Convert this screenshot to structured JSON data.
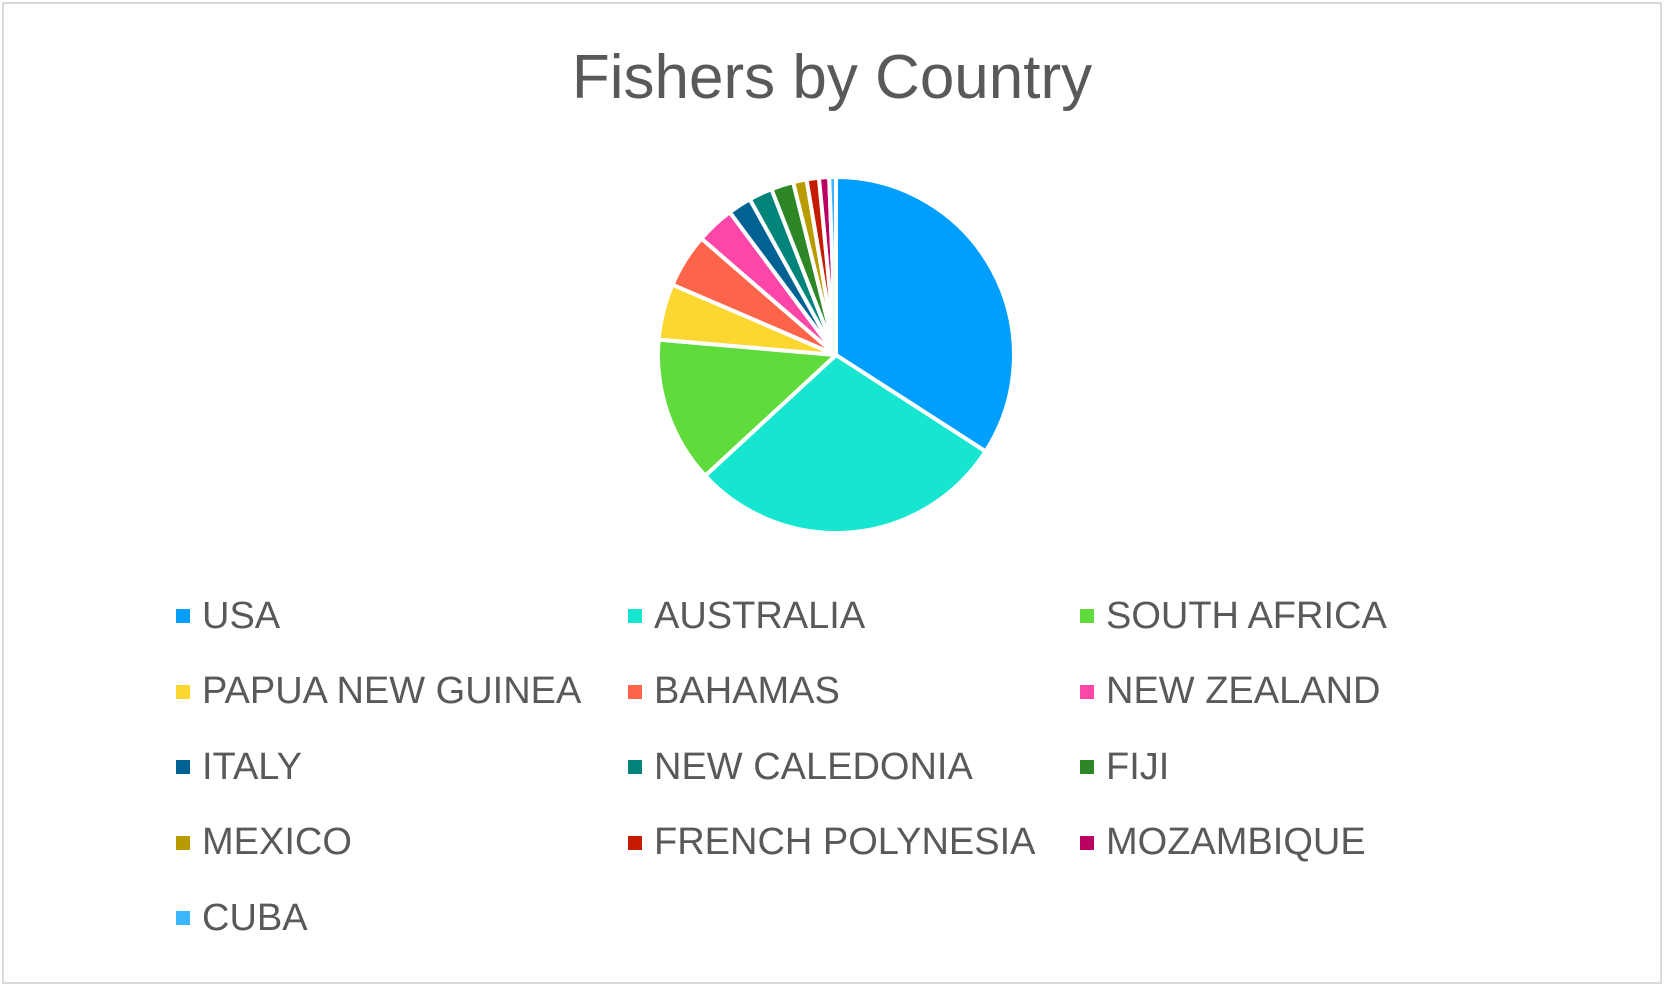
{
  "chart_data": {
    "type": "pie",
    "title": "Fishers by Country",
    "legend_position": "bottom",
    "categories": [
      "USA",
      "AUSTRALIA",
      "SOUTH AFRICA",
      "PAPUA NEW GUINEA",
      "BAHAMAS",
      "NEW ZEALAND",
      "ITALY",
      "NEW CALEDONIA",
      "FIJI",
      "MEXICO",
      "FRENCH POLYNESIA",
      "MOZAMBIQUE",
      "CUBA"
    ],
    "values": [
      33.5,
      28.5,
      13.0,
      5.0,
      4.8,
      3.4,
      2.1,
      2.1,
      2.0,
      1.2,
      1.1,
      0.9,
      0.6
    ],
    "colors": [
      "#009ffd",
      "#16e6d0",
      "#60db3c",
      "#fdd731",
      "#fe6449",
      "#fe46a9",
      "#006293",
      "#02847a",
      "#2d8726",
      "#b99b00",
      "#c51b00",
      "#bb0064",
      "#3ab7ff"
    ]
  }
}
